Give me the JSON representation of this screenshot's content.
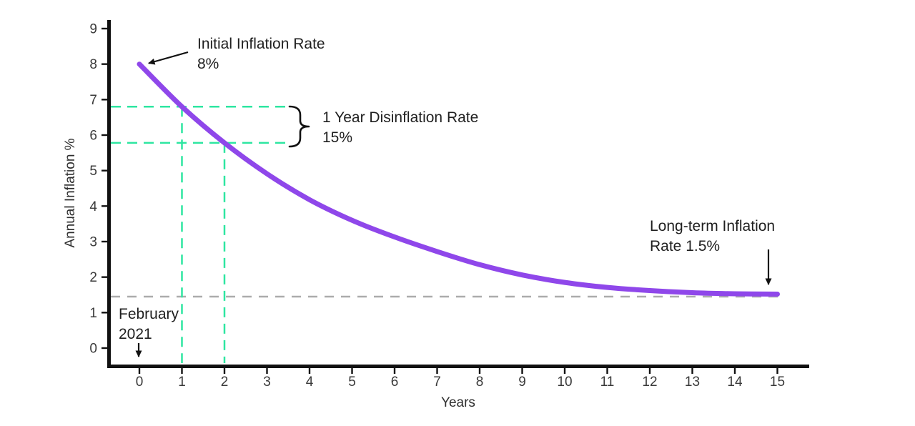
{
  "chart_data": {
    "type": "line",
    "title": "",
    "xlabel": "Years",
    "ylabel": "Annual Inflation %",
    "x": [
      0,
      1,
      2,
      3,
      4,
      5,
      6,
      7,
      8,
      9,
      10,
      11,
      12,
      13,
      14,
      15
    ],
    "series": [
      {
        "name": "Annual Inflation %",
        "values": [
          8.0,
          6.8,
          5.78,
          4.91,
          4.18,
          3.6,
          3.13,
          2.72,
          2.35,
          2.06,
          1.85,
          1.71,
          1.62,
          1.56,
          1.53,
          1.52
        ]
      }
    ],
    "xlim": [
      0,
      15
    ],
    "ylim": [
      0,
      9
    ],
    "x_ticks": [
      0,
      1,
      2,
      3,
      4,
      5,
      6,
      7,
      8,
      9,
      10,
      11,
      12,
      13,
      14,
      15
    ],
    "y_ticks": [
      0,
      1,
      2,
      3,
      4,
      5,
      6,
      7,
      8,
      9
    ],
    "grid": false,
    "legend": "none",
    "initial_inflation_rate_pct": 8,
    "one_year_disinflation_rate_pct": 15,
    "long_term_inflation_rate_pct": 1.5,
    "start_date": "February 2021",
    "reference_lines": {
      "teal_horizontal_values": [
        6.8,
        5.78
      ],
      "teal_vertical_x": [
        1,
        2
      ],
      "gray_horizontal_value": 1.45
    }
  },
  "annotations": {
    "initial": {
      "line1": "Initial Inflation Rate",
      "line2": "8%"
    },
    "disinflation": {
      "line1": "1 Year Disinflation Rate",
      "line2": "15%"
    },
    "long_term": {
      "line1": "Long-term Inflation",
      "line2": "Rate 1.5%"
    },
    "start_date": {
      "line1": "February",
      "line2": "2021"
    }
  },
  "colors": {
    "curve": "#8F47EA",
    "teal_dash": "#2EE6A1",
    "gray_dash": "#ACACAC",
    "axis": "#111111",
    "annotation_text": "#1f1f1f"
  }
}
